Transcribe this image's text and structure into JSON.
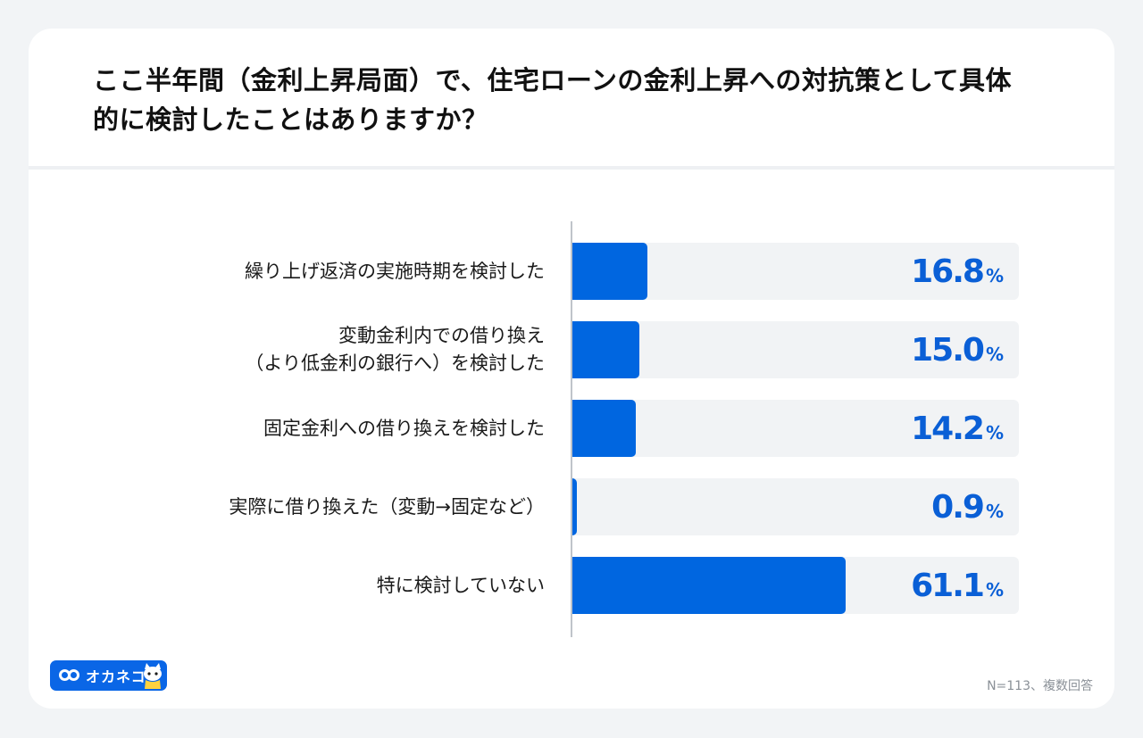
{
  "title_lines": [
    "ここ半年間（金利上昇局面）で、住宅ローンの金利上昇への対抗策として具体",
    "的に検討したことはありますか？"
  ],
  "chart_data": {
    "type": "bar",
    "orientation": "horizontal",
    "title": "ここ半年間（金利上昇局面）で、住宅ローンの金利上昇への対抗策として具体的に検討したことはありますか？",
    "categories": [
      [
        "繰り上げ返済の実施時期を検討した"
      ],
      [
        "変動金利内での借り換え",
        "（より低金利の銀行へ）を検討した"
      ],
      [
        "固定金利への借り換えを検討した"
      ],
      [
        "実際に借り換えた（変動→固定など）"
      ],
      [
        "特に検討していない"
      ]
    ],
    "values": [
      16.8,
      15.0,
      14.2,
      0.9,
      61.1
    ],
    "value_labels": [
      "16.8",
      "15.0",
      "14.2",
      "0.9",
      "61.1"
    ],
    "unit": "%",
    "xlim": [
      0,
      100
    ],
    "bar_color": "#0066e0",
    "track_color": "#f1f3f5",
    "label_color": "#0a5fd6",
    "grid": false,
    "legend": "none"
  },
  "footer": {
    "logo_text": "オカネコ",
    "note": "N=113、複数回答"
  },
  "icons": {
    "logo_mark": "infinity-icon",
    "logo_mascot": "cat-mascot-icon"
  }
}
